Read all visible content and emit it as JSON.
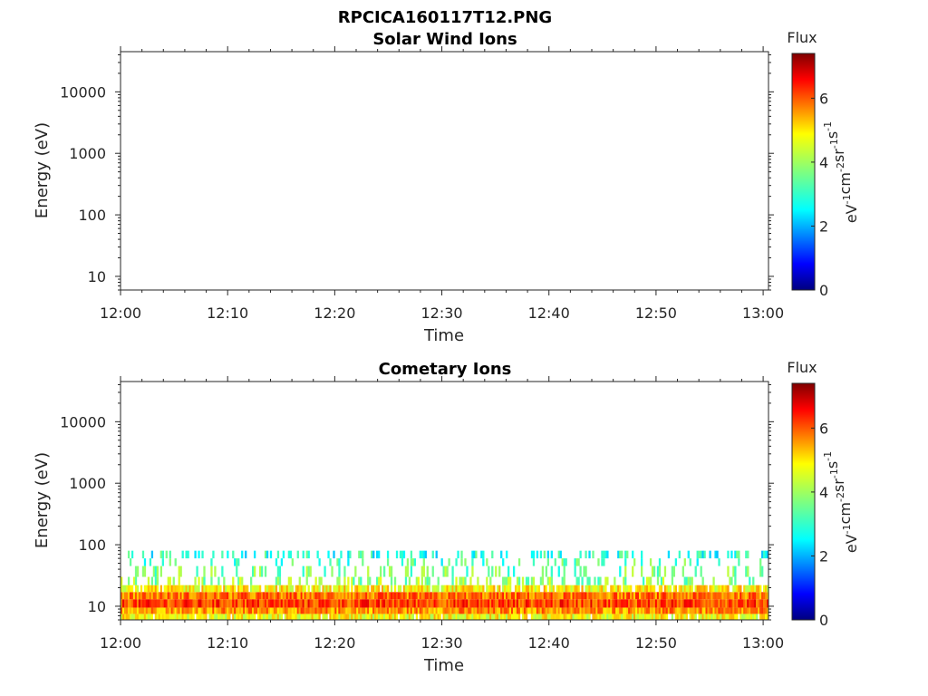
{
  "figure": {
    "title": "RPCICA160117T12.PNG"
  },
  "chart_data": [
    {
      "type": "heatmap",
      "title": "Solar Wind Ions",
      "xlabel": "Time",
      "ylabel": "Energy (eV)",
      "x_ticks": [
        "12:00",
        "12:10",
        "12:20",
        "12:30",
        "12:40",
        "12:50",
        "13:00"
      ],
      "x_range_minutes": [
        0,
        60.5
      ],
      "y_scale": "log",
      "y_ticks": [
        10,
        100,
        1000,
        10000
      ],
      "y_tick_labels": [
        "10",
        "100",
        "1000",
        "10000"
      ],
      "ylim": [
        6,
        45000
      ],
      "colorbar": {
        "title": "Flux",
        "label_parts": [
          "eV",
          "-1",
          "cm",
          "-2",
          "sr",
          "-1",
          "s",
          "-1"
        ],
        "range": [
          0,
          7.4
        ],
        "ticks": [
          0,
          2,
          4,
          6
        ],
        "tick_labels": [
          "0",
          "2",
          "4",
          "6"
        ],
        "colormap": "jet"
      },
      "bands": []
    },
    {
      "type": "heatmap",
      "title": "Cometary Ions",
      "xlabel": "Time",
      "ylabel": "Energy (eV)",
      "x_ticks": [
        "12:00",
        "12:10",
        "12:20",
        "12:30",
        "12:40",
        "12:50",
        "13:00"
      ],
      "x_range_minutes": [
        0,
        60.5
      ],
      "y_scale": "log",
      "y_ticks": [
        10,
        100,
        1000,
        10000
      ],
      "y_tick_labels": [
        "10",
        "100",
        "1000",
        "10000"
      ],
      "ylim": [
        6,
        45000
      ],
      "colorbar": {
        "title": "Flux",
        "label_parts": [
          "eV",
          "-1",
          "cm",
          "-2",
          "sr",
          "-1",
          "s",
          "-1"
        ],
        "range": [
          0,
          7.4
        ],
        "ticks": [
          0,
          2,
          4,
          6
        ],
        "tick_labels": [
          "0",
          "2",
          "4",
          "6"
        ],
        "colormap": "jet"
      },
      "bands": [
        {
          "energy_min_eV": 6,
          "energy_max_eV": 7.5,
          "flux_level": 4.6,
          "coverage": 0.95
        },
        {
          "energy_min_eV": 7.5,
          "energy_max_eV": 9.5,
          "flux_level": 5.4,
          "coverage": 1.0
        },
        {
          "energy_min_eV": 9.5,
          "energy_max_eV": 13,
          "flux_level": 6.0,
          "coverage": 1.0
        },
        {
          "energy_min_eV": 13,
          "energy_max_eV": 17,
          "flux_level": 5.6,
          "coverage": 1.0
        },
        {
          "energy_min_eV": 17,
          "energy_max_eV": 22,
          "flux_level": 4.7,
          "coverage": 0.85
        },
        {
          "energy_min_eV": 22,
          "energy_max_eV": 30,
          "flux_level": 3.8,
          "coverage": 0.3
        },
        {
          "energy_min_eV": 30,
          "energy_max_eV": 45,
          "flux_level": 3.6,
          "coverage": 0.2
        },
        {
          "energy_min_eV": 45,
          "energy_max_eV": 60,
          "flux_level": 3.3,
          "coverage": 0.15
        },
        {
          "energy_min_eV": 60,
          "energy_max_eV": 80,
          "flux_level": 3.0,
          "coverage": 0.3
        }
      ]
    }
  ]
}
